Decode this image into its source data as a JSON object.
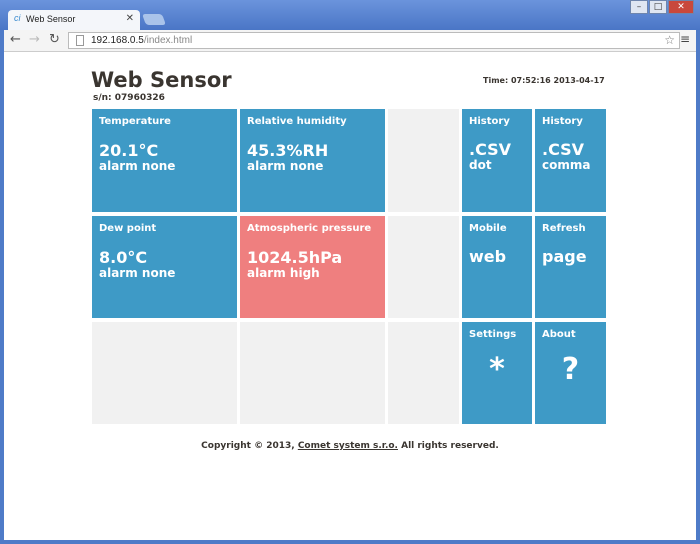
{
  "browser": {
    "tab_title": "Web Sensor",
    "url_host": "192.168.0.5",
    "url_path": "/index.html"
  },
  "header": {
    "title": "Web Sensor",
    "serial": "s/n: 07960326",
    "time": "Time: 07:52:16 2013-04-17"
  },
  "tiles": {
    "temperature": {
      "label": "Temperature",
      "value": "20.1°C",
      "alarm": "alarm none"
    },
    "humidity": {
      "label": "Relative humidity",
      "value": "45.3%RH",
      "alarm": "alarm none"
    },
    "dewpoint": {
      "label": "Dew point",
      "value": "8.0°C",
      "alarm": "alarm none"
    },
    "pressure": {
      "label": "Atmospheric pressure",
      "value": "1024.5hPa",
      "alarm": "alarm high"
    },
    "history_dot": {
      "label": "History",
      "value": ".CSV",
      "sub": "dot"
    },
    "history_comma": {
      "label": "History",
      "value": ".CSV",
      "sub": "comma"
    },
    "mobile": {
      "label": "Mobile",
      "value": "web"
    },
    "refresh": {
      "label": "Refresh",
      "value": "page"
    },
    "settings": {
      "label": "Settings",
      "value": "*"
    },
    "about": {
      "label": "About",
      "value": "?"
    }
  },
  "colors": {
    "tile_blue": "#3e9ac6",
    "tile_alarm": "#ef7f7f",
    "tile_empty": "#f1f1f1"
  },
  "footer": {
    "prefix": "Copyright © 2013, ",
    "link": "Comet system s.r.o.",
    "suffix": " All rights reserved."
  }
}
